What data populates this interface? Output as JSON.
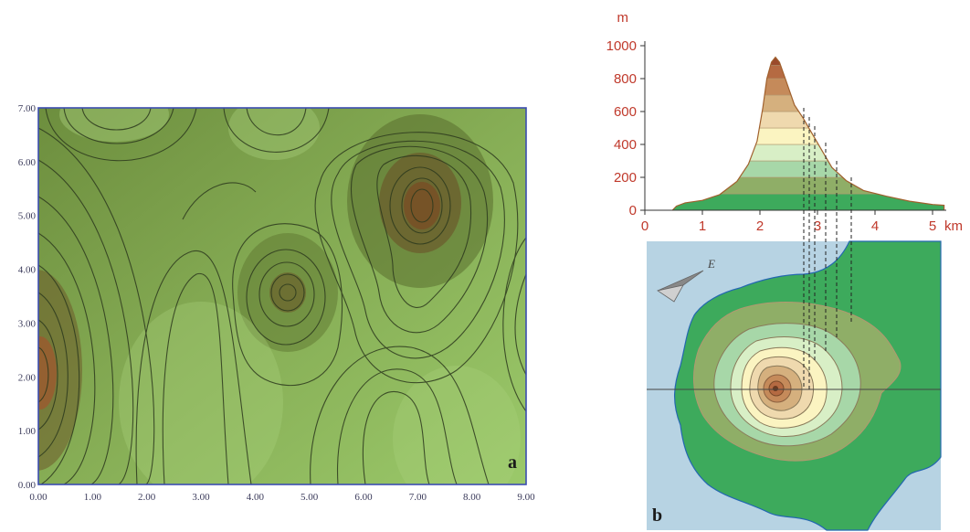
{
  "panel_a": {
    "letter": "a",
    "x_ticks": [
      "0.00",
      "1.00",
      "2.00",
      "3.00",
      "4.00",
      "5.00",
      "6.00",
      "7.00",
      "8.00",
      "9.00"
    ],
    "y_ticks": [
      "0.00",
      "1.00",
      "2.00",
      "3.00",
      "4.00",
      "5.00",
      "6.00",
      "7.00"
    ]
  },
  "panel_b": {
    "letter": "b",
    "profile": {
      "y_unit": "m",
      "x_unit": "km",
      "y_ticks": [
        "0",
        "200",
        "400",
        "600",
        "800",
        "1000"
      ],
      "x_ticks": [
        "0",
        "1",
        "2",
        "3",
        "4",
        "5"
      ],
      "bands": [
        {
          "from": 0,
          "to": 100,
          "color": "#3daa5c"
        },
        {
          "from": 100,
          "to": 200,
          "color": "#8fae67"
        },
        {
          "from": 200,
          "to": 300,
          "color": "#a7d7a8"
        },
        {
          "from": 300,
          "to": 400,
          "color": "#d8efc6"
        },
        {
          "from": 400,
          "to": 500,
          "color": "#fbf4c1"
        },
        {
          "from": 500,
          "to": 600,
          "color": "#efd9ae"
        },
        {
          "from": 600,
          "to": 700,
          "color": "#d5b07e"
        },
        {
          "from": 700,
          "to": 800,
          "color": "#c58a5a"
        },
        {
          "from": 800,
          "to": 880,
          "color": "#b56a42"
        },
        {
          "from": 880,
          "to": 930,
          "color": "#9a4a2b"
        }
      ]
    },
    "compass_label": "E"
  }
}
